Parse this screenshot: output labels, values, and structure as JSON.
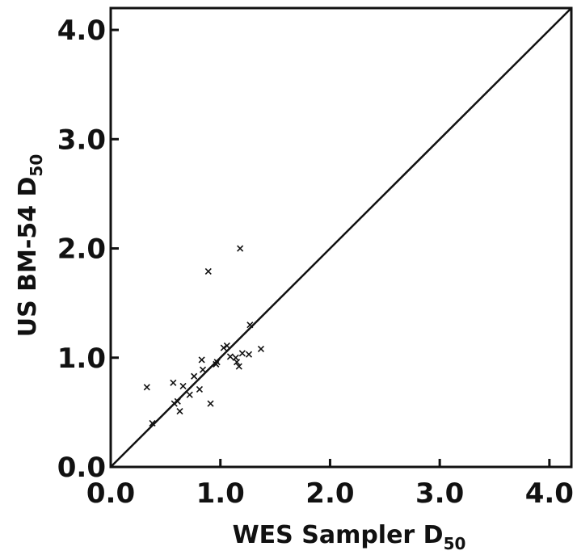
{
  "chart_data": {
    "type": "scatter",
    "xlabel": "WES Sampler D",
    "xlabel_subscript": "50",
    "ylabel": "US BM-54 D",
    "ylabel_subscript": "50",
    "xlim": [
      0,
      4.2
    ],
    "ylim": [
      0,
      4.2
    ],
    "xticks": [
      0,
      1,
      2,
      3,
      4
    ],
    "yticks": [
      0,
      1,
      2,
      3,
      4
    ],
    "xtick_labels": [
      "0.0",
      "1.0",
      "2.0",
      "3.0",
      "4.0"
    ],
    "ytick_labels": [
      "0.0",
      "1.0",
      "2.0",
      "3.0",
      "4.0"
    ],
    "reference_line": {
      "type": "y=x",
      "from": [
        0,
        0
      ],
      "to": [
        4.2,
        4.2
      ]
    },
    "grid": false,
    "points": [
      {
        "x": 0.33,
        "y": 0.73
      },
      {
        "x": 0.38,
        "y": 0.4
      },
      {
        "x": 0.57,
        "y": 0.77
      },
      {
        "x": 0.58,
        "y": 0.58
      },
      {
        "x": 0.61,
        "y": 0.6
      },
      {
        "x": 0.63,
        "y": 0.51
      },
      {
        "x": 0.66,
        "y": 0.74
      },
      {
        "x": 0.72,
        "y": 0.66
      },
      {
        "x": 0.76,
        "y": 0.83
      },
      {
        "x": 0.81,
        "y": 0.71
      },
      {
        "x": 0.83,
        "y": 0.98
      },
      {
        "x": 0.84,
        "y": 0.89
      },
      {
        "x": 0.89,
        "y": 1.79
      },
      {
        "x": 0.91,
        "y": 0.58
      },
      {
        "x": 0.96,
        "y": 0.94
      },
      {
        "x": 0.97,
        "y": 0.96
      },
      {
        "x": 1.03,
        "y": 1.09
      },
      {
        "x": 1.06,
        "y": 1.11
      },
      {
        "x": 1.09,
        "y": 1.01
      },
      {
        "x": 1.14,
        "y": 1.0
      },
      {
        "x": 1.15,
        "y": 0.96
      },
      {
        "x": 1.17,
        "y": 0.92
      },
      {
        "x": 1.18,
        "y": 2.0
      },
      {
        "x": 1.2,
        "y": 1.04
      },
      {
        "x": 1.26,
        "y": 1.03
      },
      {
        "x": 1.27,
        "y": 1.3
      },
      {
        "x": 1.37,
        "y": 1.08
      }
    ]
  }
}
